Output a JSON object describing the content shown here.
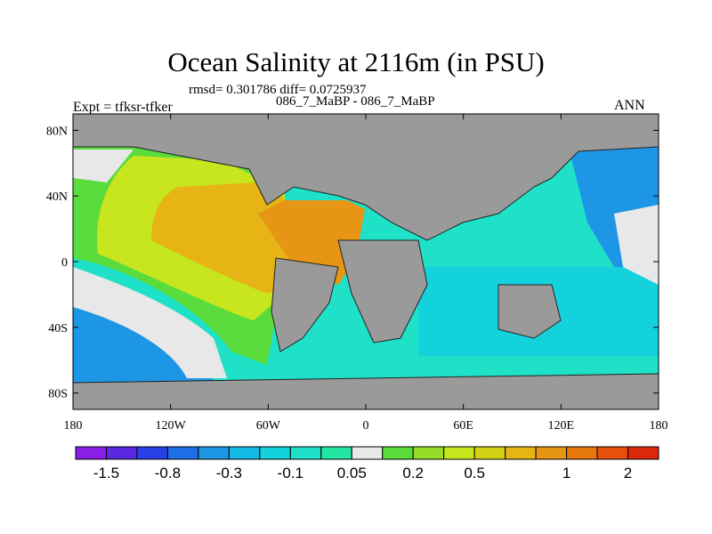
{
  "chart_data": {
    "type": "heatmap",
    "title": "Ocean Salinity at 2116m (in PSU)",
    "stats_line": "rmsd= 0.301786 diff= 0.0725937",
    "subtitle": "086_7_MaBP - 086_7_MaBP",
    "left_label": "Expt = tfksr-tfker",
    "right_label": "ANN",
    "x_axis": {
      "range": [
        -180,
        180
      ],
      "ticks": [
        {
          "value": -180,
          "label": "180"
        },
        {
          "value": -120,
          "label": "120W"
        },
        {
          "value": -60,
          "label": "60W"
        },
        {
          "value": 0,
          "label": "0"
        },
        {
          "value": 60,
          "label": "60E"
        },
        {
          "value": 120,
          "label": "120E"
        },
        {
          "value": 180,
          "label": "180"
        }
      ]
    },
    "y_axis": {
      "range": [
        -90,
        90
      ],
      "ticks": [
        {
          "value": 80,
          "label": "80N"
        },
        {
          "value": 40,
          "label": "40N"
        },
        {
          "value": 0,
          "label": "0"
        },
        {
          "value": -40,
          "label": "40S"
        },
        {
          "value": -80,
          "label": "80S"
        }
      ]
    },
    "colorbar": {
      "colors": [
        "#8a1ee6",
        "#5a28e0",
        "#2840e6",
        "#1e6ee6",
        "#1e96e6",
        "#14b9e6",
        "#14d2dc",
        "#1ee1c8",
        "#23e6a5",
        "#e8e8e8",
        "#5adc3c",
        "#96dc28",
        "#c8e61e",
        "#d2d214",
        "#e6b414",
        "#e69614",
        "#e6780a",
        "#e6500a",
        "#dc280a"
      ],
      "labels": [
        {
          "boundary": 1,
          "text": "-1.5"
        },
        {
          "boundary": 3,
          "text": "-0.8"
        },
        {
          "boundary": 5,
          "text": "-0.3"
        },
        {
          "boundary": 7,
          "text": "-0.1"
        },
        {
          "boundary": 9,
          "text": "0.05"
        },
        {
          "boundary": 11,
          "text": "0.2"
        },
        {
          "boundary": 13,
          "text": "0.5"
        },
        {
          "boundary": 16,
          "text": "1"
        },
        {
          "boundary": 18,
          "text": "2"
        }
      ]
    }
  }
}
